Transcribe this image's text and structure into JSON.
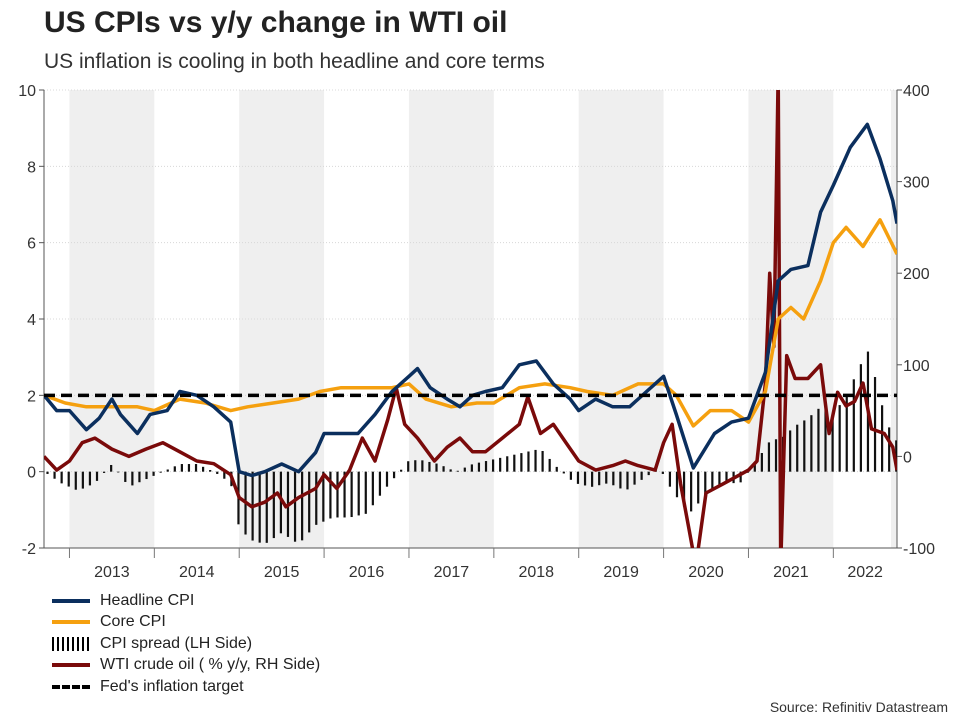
{
  "title": "US CPIs vs y/y change in WTI oil",
  "subtitle": "US inflation is cooling in both headline and core terms",
  "source": "Source: Refinitiv Datastream",
  "colors": {
    "headline": "#0b2f5e",
    "core": "#f5a00f",
    "spread": "#111111",
    "wti": "#7a0a0a",
    "target": "#000000",
    "shade": "#efefef"
  },
  "legend": [
    {
      "label": "Headline CPI",
      "kind": "line",
      "color": "#0b2f5e"
    },
    {
      "label": "Core CPI",
      "kind": "line",
      "color": "#f5a00f"
    },
    {
      "label": "CPI spread (LH Side)",
      "kind": "bars",
      "color": "#111111"
    },
    {
      "label": "WTI crude oil ( % y/y, RH Side)",
      "kind": "line",
      "color": "#7a0a0a"
    },
    {
      "label": "Fed's inflation target",
      "kind": "dash",
      "color": "#000000"
    }
  ],
  "chart_data": {
    "type": "line",
    "x_start": 2012.7,
    "x_end": 2022.75,
    "years": [
      "2013",
      "2014",
      "2015",
      "2016",
      "2017",
      "2018",
      "2019",
      "2020",
      "2021",
      "2022"
    ],
    "shaded_years": [
      2013,
      2015,
      2017,
      2019,
      2021
    ],
    "y_left": {
      "min": -2,
      "max": 10,
      "ticks": [
        "-2",
        "0",
        "2",
        "4",
        "6",
        "8",
        "10"
      ]
    },
    "y_right": {
      "min": -100,
      "max": 400,
      "ticks": [
        "-100",
        "0",
        "100",
        "200",
        "300",
        "400"
      ]
    },
    "target": 2,
    "series": [
      {
        "name": "Headline CPI",
        "axis": "left",
        "points": [
          [
            2012.7,
            2.0
          ],
          [
            2012.85,
            1.6
          ],
          [
            2013.0,
            1.6
          ],
          [
            2013.2,
            1.1
          ],
          [
            2013.35,
            1.4
          ],
          [
            2013.5,
            1.9
          ],
          [
            2013.6,
            1.5
          ],
          [
            2013.8,
            1.0
          ],
          [
            2013.95,
            1.5
          ],
          [
            2014.15,
            1.6
          ],
          [
            2014.3,
            2.1
          ],
          [
            2014.5,
            2.0
          ],
          [
            2014.7,
            1.7
          ],
          [
            2014.9,
            1.3
          ],
          [
            2015.0,
            0.0
          ],
          [
            2015.15,
            -0.1
          ],
          [
            2015.3,
            0.0
          ],
          [
            2015.5,
            0.2
          ],
          [
            2015.7,
            0.0
          ],
          [
            2015.9,
            0.5
          ],
          [
            2016.0,
            1.0
          ],
          [
            2016.2,
            1.0
          ],
          [
            2016.4,
            1.0
          ],
          [
            2016.6,
            1.5
          ],
          [
            2016.8,
            2.1
          ],
          [
            2017.0,
            2.5
          ],
          [
            2017.1,
            2.7
          ],
          [
            2017.25,
            2.2
          ],
          [
            2017.45,
            1.9
          ],
          [
            2017.6,
            1.7
          ],
          [
            2017.75,
            2.0
          ],
          [
            2017.9,
            2.1
          ],
          [
            2018.1,
            2.2
          ],
          [
            2018.3,
            2.8
          ],
          [
            2018.5,
            2.9
          ],
          [
            2018.7,
            2.3
          ],
          [
            2018.9,
            1.9
          ],
          [
            2019.0,
            1.6
          ],
          [
            2019.2,
            1.9
          ],
          [
            2019.4,
            1.7
          ],
          [
            2019.6,
            1.7
          ],
          [
            2019.8,
            2.1
          ],
          [
            2020.0,
            2.5
          ],
          [
            2020.15,
            1.5
          ],
          [
            2020.35,
            0.1
          ],
          [
            2020.6,
            1.0
          ],
          [
            2020.8,
            1.3
          ],
          [
            2021.0,
            1.4
          ],
          [
            2021.2,
            2.6
          ],
          [
            2021.35,
            5.0
          ],
          [
            2021.5,
            5.3
          ],
          [
            2021.7,
            5.4
          ],
          [
            2021.85,
            6.8
          ],
          [
            2022.0,
            7.5
          ],
          [
            2022.2,
            8.5
          ],
          [
            2022.4,
            9.1
          ],
          [
            2022.55,
            8.2
          ],
          [
            2022.7,
            7.1
          ],
          [
            2022.75,
            6.5
          ]
        ]
      },
      {
        "name": "Core CPI",
        "axis": "left",
        "points": [
          [
            2012.7,
            2.0
          ],
          [
            2012.95,
            1.8
          ],
          [
            2013.2,
            1.7
          ],
          [
            2013.5,
            1.7
          ],
          [
            2013.8,
            1.7
          ],
          [
            2014.0,
            1.6
          ],
          [
            2014.3,
            1.9
          ],
          [
            2014.6,
            1.8
          ],
          [
            2014.9,
            1.6
          ],
          [
            2015.1,
            1.7
          ],
          [
            2015.4,
            1.8
          ],
          [
            2015.7,
            1.9
          ],
          [
            2015.95,
            2.1
          ],
          [
            2016.2,
            2.2
          ],
          [
            2016.5,
            2.2
          ],
          [
            2016.8,
            2.2
          ],
          [
            2017.0,
            2.3
          ],
          [
            2017.2,
            1.9
          ],
          [
            2017.5,
            1.7
          ],
          [
            2017.8,
            1.8
          ],
          [
            2018.0,
            1.8
          ],
          [
            2018.3,
            2.2
          ],
          [
            2018.6,
            2.3
          ],
          [
            2018.9,
            2.2
          ],
          [
            2019.1,
            2.1
          ],
          [
            2019.4,
            2.0
          ],
          [
            2019.7,
            2.3
          ],
          [
            2020.0,
            2.3
          ],
          [
            2020.15,
            2.0
          ],
          [
            2020.35,
            1.2
          ],
          [
            2020.55,
            1.6
          ],
          [
            2020.8,
            1.6
          ],
          [
            2021.0,
            1.3
          ],
          [
            2021.2,
            2.1
          ],
          [
            2021.35,
            4.0
          ],
          [
            2021.5,
            4.3
          ],
          [
            2021.65,
            4.0
          ],
          [
            2021.85,
            5.0
          ],
          [
            2022.0,
            6.0
          ],
          [
            2022.15,
            6.4
          ],
          [
            2022.35,
            5.9
          ],
          [
            2022.55,
            6.6
          ],
          [
            2022.75,
            5.7
          ]
        ]
      },
      {
        "name": "WTI crude oil",
        "axis": "right",
        "points": [
          [
            2012.7,
            0
          ],
          [
            2012.85,
            -15
          ],
          [
            2013.0,
            -5
          ],
          [
            2013.15,
            15
          ],
          [
            2013.3,
            20
          ],
          [
            2013.5,
            8
          ],
          [
            2013.7,
            0
          ],
          [
            2013.9,
            8
          ],
          [
            2014.1,
            15
          ],
          [
            2014.3,
            5
          ],
          [
            2014.5,
            -5
          ],
          [
            2014.7,
            -8
          ],
          [
            2014.9,
            -20
          ],
          [
            2015.0,
            -45
          ],
          [
            2015.15,
            -55
          ],
          [
            2015.3,
            -50
          ],
          [
            2015.45,
            -40
          ],
          [
            2015.55,
            -55
          ],
          [
            2015.7,
            -45
          ],
          [
            2015.9,
            -35
          ],
          [
            2016.0,
            -20
          ],
          [
            2016.15,
            -35
          ],
          [
            2016.3,
            -15
          ],
          [
            2016.45,
            20
          ],
          [
            2016.6,
            -5
          ],
          [
            2016.75,
            40
          ],
          [
            2016.85,
            75
          ],
          [
            2016.95,
            35
          ],
          [
            2017.1,
            20
          ],
          [
            2017.3,
            -5
          ],
          [
            2017.45,
            10
          ],
          [
            2017.6,
            20
          ],
          [
            2017.75,
            5
          ],
          [
            2017.9,
            5
          ],
          [
            2018.1,
            20
          ],
          [
            2018.3,
            35
          ],
          [
            2018.4,
            65
          ],
          [
            2018.55,
            25
          ],
          [
            2018.7,
            35
          ],
          [
            2018.85,
            15
          ],
          [
            2019.0,
            -5
          ],
          [
            2019.2,
            -15
          ],
          [
            2019.4,
            -10
          ],
          [
            2019.55,
            -5
          ],
          [
            2019.7,
            -10
          ],
          [
            2019.9,
            -15
          ],
          [
            2020.0,
            15
          ],
          [
            2020.1,
            35
          ],
          [
            2020.2,
            -30
          ],
          [
            2020.3,
            -80
          ],
          [
            2020.38,
            -120
          ],
          [
            2020.5,
            -40
          ],
          [
            2020.7,
            -30
          ],
          [
            2020.9,
            -20
          ],
          [
            2021.0,
            -15
          ],
          [
            2021.1,
            -5
          ],
          [
            2021.2,
            80
          ],
          [
            2021.25,
            200
          ],
          [
            2021.3,
            120
          ],
          [
            2021.35,
            420
          ],
          [
            2021.38,
            -120
          ],
          [
            2021.45,
            110
          ],
          [
            2021.55,
            85
          ],
          [
            2021.7,
            85
          ],
          [
            2021.85,
            100
          ],
          [
            2021.95,
            25
          ],
          [
            2022.05,
            70
          ],
          [
            2022.15,
            55
          ],
          [
            2022.25,
            60
          ],
          [
            2022.35,
            80
          ],
          [
            2022.45,
            30
          ],
          [
            2022.6,
            25
          ],
          [
            2022.7,
            10
          ],
          [
            2022.75,
            -15
          ]
        ]
      },
      {
        "name": "CPI spread",
        "axis": "left",
        "type": "bar",
        "points": [
          [
            2012.7,
            0.0
          ],
          [
            2012.9,
            -0.3
          ],
          [
            2013.1,
            -0.5
          ],
          [
            2013.3,
            -0.3
          ],
          [
            2013.5,
            0.2
          ],
          [
            2013.7,
            -0.4
          ],
          [
            2013.9,
            -0.2
          ],
          [
            2014.1,
            0.0
          ],
          [
            2014.3,
            0.2
          ],
          [
            2014.5,
            0.2
          ],
          [
            2014.7,
            0.0
          ],
          [
            2014.9,
            -0.3
          ],
          [
            2015.0,
            -1.5
          ],
          [
            2015.15,
            -1.8
          ],
          [
            2015.3,
            -1.9
          ],
          [
            2015.5,
            -1.6
          ],
          [
            2015.7,
            -1.9
          ],
          [
            2015.9,
            -1.4
          ],
          [
            2016.1,
            -1.2
          ],
          [
            2016.3,
            -1.2
          ],
          [
            2016.5,
            -1.1
          ],
          [
            2016.7,
            -0.5
          ],
          [
            2016.85,
            -0.1
          ],
          [
            2017.0,
            0.3
          ],
          [
            2017.15,
            0.3
          ],
          [
            2017.35,
            0.2
          ],
          [
            2017.55,
            0.0
          ],
          [
            2017.75,
            0.2
          ],
          [
            2017.95,
            0.3
          ],
          [
            2018.15,
            0.4
          ],
          [
            2018.35,
            0.5
          ],
          [
            2018.55,
            0.6
          ],
          [
            2018.75,
            0.1
          ],
          [
            2018.95,
            -0.3
          ],
          [
            2019.15,
            -0.4
          ],
          [
            2019.35,
            -0.3
          ],
          [
            2019.55,
            -0.5
          ],
          [
            2019.75,
            -0.2
          ],
          [
            2019.95,
            0.1
          ],
          [
            2020.1,
            -0.5
          ],
          [
            2020.3,
            -1.1
          ],
          [
            2020.5,
            -0.6
          ],
          [
            2020.7,
            -0.3
          ],
          [
            2020.9,
            -0.3
          ],
          [
            2021.1,
            0.3
          ],
          [
            2021.25,
            0.8
          ],
          [
            2021.4,
            0.9
          ],
          [
            2021.55,
            1.2
          ],
          [
            2021.7,
            1.4
          ],
          [
            2021.85,
            1.7
          ],
          [
            2022.0,
            1.5
          ],
          [
            2022.15,
            2.0
          ],
          [
            2022.3,
            2.7
          ],
          [
            2022.4,
            3.2
          ],
          [
            2022.5,
            2.4
          ],
          [
            2022.6,
            1.5
          ],
          [
            2022.7,
            0.9
          ],
          [
            2022.75,
            0.8
          ]
        ]
      }
    ]
  }
}
